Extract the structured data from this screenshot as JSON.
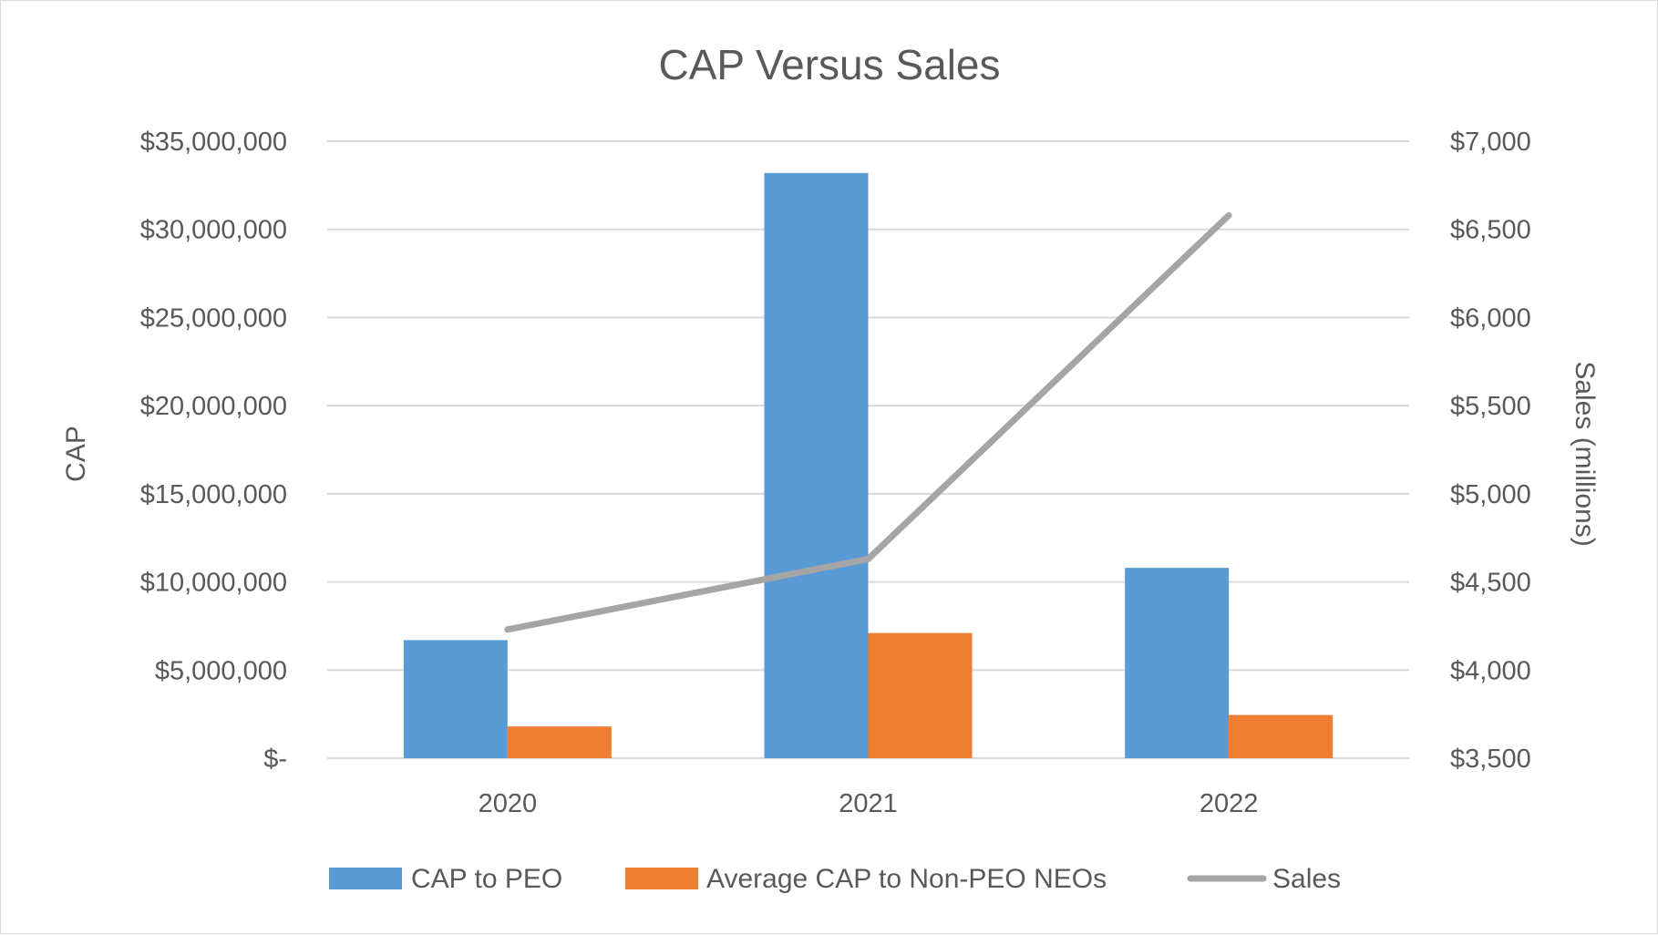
{
  "chart_data": {
    "type": "bar",
    "title": "CAP Versus Sales",
    "categories": [
      "2020",
      "2021",
      "2022"
    ],
    "ylabel": "CAP",
    "y2label": "Sales (millions)",
    "ylim": [
      0,
      35000000
    ],
    "y2lim": [
      3500,
      7000
    ],
    "yticks": [
      {
        "value": 0,
        "label": "$-"
      },
      {
        "value": 5000000,
        "label": "$5,000,000"
      },
      {
        "value": 10000000,
        "label": "$10,000,000"
      },
      {
        "value": 15000000,
        "label": "$15,000,000"
      },
      {
        "value": 20000000,
        "label": "$20,000,000"
      },
      {
        "value": 25000000,
        "label": "$25,000,000"
      },
      {
        "value": 30000000,
        "label": "$30,000,000"
      },
      {
        "value": 35000000,
        "label": "$35,000,000"
      }
    ],
    "y2ticks": [
      {
        "value": 3500,
        "label": "$3,500"
      },
      {
        "value": 4000,
        "label": "$4,000"
      },
      {
        "value": 4500,
        "label": "$4,500"
      },
      {
        "value": 5000,
        "label": "$5,000"
      },
      {
        "value": 5500,
        "label": "$5,500"
      },
      {
        "value": 6000,
        "label": "$6,000"
      },
      {
        "value": 6500,
        "label": "$6,500"
      },
      {
        "value": 7000,
        "label": "$7,000"
      }
    ],
    "series": [
      {
        "name": "CAP to PEO",
        "kind": "bar",
        "axis": "left",
        "color": "#5b9bd5",
        "values": [
          6700000,
          33200000,
          10800000
        ]
      },
      {
        "name": "Average CAP to Non-PEO NEOs",
        "kind": "bar",
        "axis": "left",
        "color": "#ed7d31",
        "values": [
          1800000,
          7100000,
          2450000
        ]
      },
      {
        "name": "Sales",
        "kind": "line",
        "axis": "right",
        "color": "#a5a5a5",
        "values": [
          4230,
          4630,
          6580
        ]
      }
    ],
    "grid": true,
    "legend_position": "bottom"
  }
}
